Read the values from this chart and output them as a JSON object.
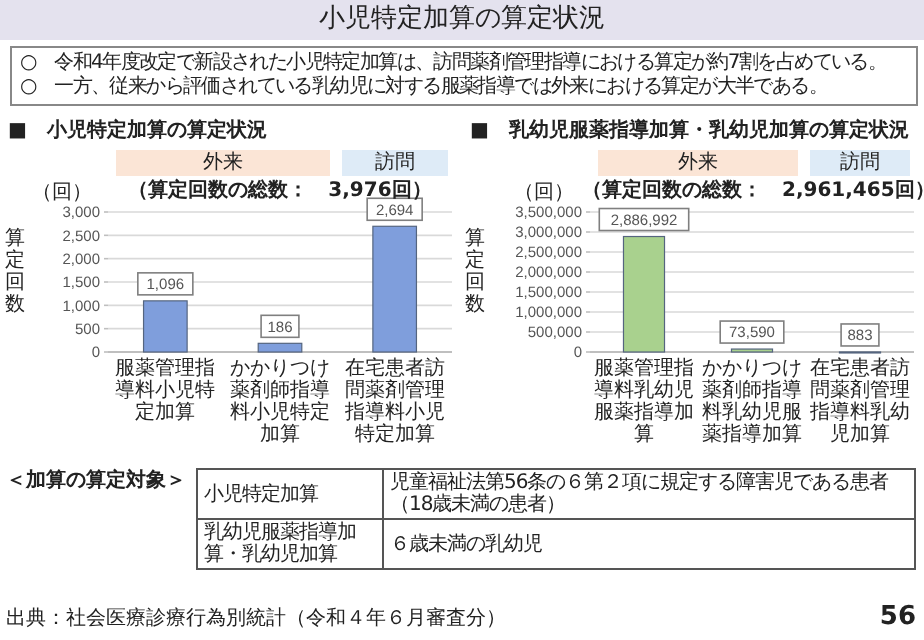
{
  "chart_data": [
    {
      "type": "other",
      "title": "小児特定加算の算定状況",
      "annotations": [
        "○　令和4年度改定で新設された小児特定加算は、訪問薬剤管理指導における算定が約7割を占めている。",
        "○　一方、従来から評価されている乳幼児に対する服薬指導では外来における算定が大半である。"
      ]
    },
    {
      "type": "bar",
      "title": "■　小児特定加算の算定状況",
      "subtitle": "（算定回数の総数：　3,976回）",
      "ylabel": "算定回数",
      "annotations": [
        "（回）",
        "外来",
        "訪問"
      ],
      "categories": [
        "服薬管理指導料小児特定加算",
        "かかりつけ薬剤師指導料小児特定加算",
        "在宅患者訪問薬剤管理指導料小児特定加算"
      ],
      "values": [
        1096,
        186,
        2694
      ],
      "value_labels": [
        "1,096",
        "186",
        "2,694"
      ],
      "color": "#7f9edc",
      "ylim": [
        0,
        3000
      ],
      "yticks": [
        {
          "value": 0,
          "label": "0"
        },
        {
          "value": 500,
          "label": "500"
        },
        {
          "value": 1000,
          "label": "1,000"
        },
        {
          "value": 1500,
          "label": "1,500"
        },
        {
          "value": 2000,
          "label": "2,000"
        },
        {
          "value": 2500,
          "label": "2,500"
        },
        {
          "value": 3000,
          "label": "3,000"
        }
      ],
      "grid": "y"
    },
    {
      "type": "bar",
      "title": "■　乳幼児服薬指導加算・乳幼児加算の算定状況",
      "subtitle": "（算定回数の総数：　2,961,465回）",
      "ylabel": "算定回数",
      "annotations": [
        "（回）",
        "外来",
        "訪問"
      ],
      "categories": [
        "服薬管理指導料乳幼児服薬指導加算",
        "かかりつけ薬剤師指導料乳幼児服薬指導加算",
        "在宅患者訪問薬剤管理指導料乳幼児加算"
      ],
      "values": [
        2886992,
        73590,
        883
      ],
      "value_labels": [
        "2,886,992",
        "73,590",
        "883"
      ],
      "color": "#a9d18e",
      "ylim": [
        0,
        3500000
      ],
      "yticks": [
        {
          "value": 0,
          "label": "0"
        },
        {
          "value": 500000,
          "label": "500,000"
        },
        {
          "value": 1000000,
          "label": "1,000,000"
        },
        {
          "value": 1500000,
          "label": "1,500,000"
        },
        {
          "value": 2000000,
          "label": "2,000,000"
        },
        {
          "value": 2500000,
          "label": "2,500,000"
        },
        {
          "value": 3000000,
          "label": "3,000,000"
        },
        {
          "value": 3500000,
          "label": "3,500,000"
        }
      ],
      "grid": "y"
    },
    {
      "type": "other",
      "title": "＜加算の算定対象＞",
      "annotations": [
        "小児特定加算",
        "児童福祉法第56条の６第２項に規定する障害児である患者",
        "（18歳未満の患者）",
        "乳幼児服薬指導加算・乳幼児加算",
        "６歳未満の乳幼児",
        "出典：社会医療診療行為別統計（令和４年６月審査分）",
        "56"
      ]
    }
  ]
}
